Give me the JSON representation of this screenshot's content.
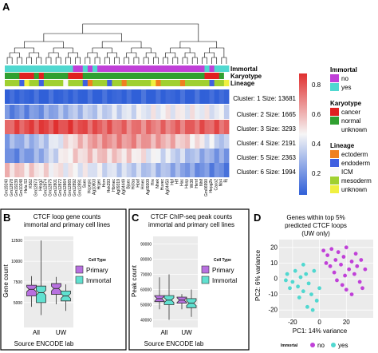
{
  "panels": {
    "A": {
      "letter": "A",
      "annotation_rows": [
        "Immortal",
        "Karyotype",
        "Lineage"
      ],
      "clusters": [
        "Cluster: 1 Size: 13681",
        "Cluster: 2 Size: 1665",
        "Cluster: 3 Size: 3293",
        "Cluster: 4 Size: 2191",
        "Cluster: 5 Size: 2363",
        "Cluster: 6 Size: 1994"
      ],
      "colorbar_ticks": [
        "0.8",
        "0.6",
        "0.4",
        "0.2"
      ],
      "legend": {
        "immortal": {
          "title": "Immortal",
          "items": [
            {
              "label": "no",
              "color": "#c040d8"
            },
            {
              "label": "yes",
              "color": "#50d8d0"
            }
          ]
        },
        "karyotype": {
          "title": "Karyotype",
          "items": [
            {
              "label": "cancer",
              "color": "#e02020"
            },
            {
              "label": "normal",
              "color": "#30a030"
            },
            {
              "label": "unknown",
              "color": "#ffffff"
            }
          ]
        },
        "lineage": {
          "title": "Lineage",
          "items": [
            {
              "label": "ectoderm",
              "color": "#f08020"
            },
            {
              "label": "endoderm",
              "color": "#4060e0"
            },
            {
              "label": "ICM",
              "color": "#f8f8f8"
            },
            {
              "label": "mesoderm",
              "color": "#a0d030"
            },
            {
              "label": "unknown",
              "color": "#f0f040"
            }
          ]
        }
      },
      "sample_labels": [
        "Gm19240",
        "Gm12878",
        "Gm19239",
        "Gm10248",
        "Hela S3",
        "K562",
        "Gm12873",
        "Hepg2",
        "Gm12874",
        "Gm12875",
        "Gm12801",
        "Gm12872",
        "Gm12864",
        "Gm12865",
        "Gm12892",
        "Gm12891",
        "Saec",
        "Hcpepic",
        "Ag10803",
        "Hrgec",
        "Hcm",
        "Hek293",
        "Hbmec",
        "Ag09319",
        "Ag04449",
        "Bjaec",
        "Hcfaa",
        "Hpaf",
        "Hmec",
        "Ag09309",
        "Hre",
        "Nhek",
        "Huvec",
        "Ag04450",
        "Hpf",
        "Hff",
        "Hac",
        "Hasp",
        "Wi38",
        "Hvmf",
        "Nhlf",
        "Gm06990",
        "Hepg2b",
        "Caco2",
        "Nb4",
        "Bj"
      ]
    },
    "B": {
      "letter": "B",
      "title_line1": "CTCF loop gene counts",
      "title_line2": "immortal and primary cell lines",
      "ylabel": "Gene count",
      "xlabel": "Source ENCODE lab",
      "yticks": [
        "12500",
        "10000",
        "7500",
        "5000"
      ],
      "categories": [
        "All",
        "UW"
      ],
      "legend_title": "Cell Type",
      "legend_items": [
        {
          "label": "Primary",
          "color": "#b870e0"
        },
        {
          "label": "Immortal",
          "color": "#60e0d0"
        }
      ]
    },
    "C": {
      "letter": "C",
      "title_line1": "CTCF ChIP-seq peak counts",
      "title_line2": "immortal and primary cell lines",
      "ylabel": "Peak count",
      "xlabel": "Source ENCODE lab",
      "yticks": [
        "90000",
        "80000",
        "70000",
        "60000",
        "50000",
        "40000"
      ],
      "categories": [
        "All",
        "UW"
      ],
      "legend_title": "Cell Type",
      "legend_items": [
        {
          "label": "Primary",
          "color": "#b870e0"
        },
        {
          "label": "Immortal",
          "color": "#60e0d0"
        }
      ]
    },
    "D": {
      "letter": "D",
      "title_line1": "Genes within top 5%",
      "title_line2": "predicted CTCF loops",
      "title_line3": "(UW only)",
      "ylabel": "PC2: 6% variance",
      "xlabel": "PC1: 14% variance",
      "xticks": [
        "-20",
        "0",
        "20"
      ],
      "yticks": [
        "20",
        "10",
        "0",
        "-10",
        "-20"
      ],
      "legend_title": "Immortal",
      "legend_items": [
        {
          "label": "no",
          "color": "#c040d8"
        },
        {
          "label": "yes",
          "color": "#50d8d0"
        }
      ]
    }
  },
  "chart_data": [
    {
      "type": "heatmap",
      "panel": "A",
      "rows": [
        "Cluster 1",
        "Cluster 2",
        "Cluster 3",
        "Cluster 4",
        "Cluster 5",
        "Cluster 6"
      ],
      "row_sizes": [
        13681,
        1665,
        3293,
        2191,
        2363,
        1994
      ],
      "color_range": [
        0.1,
        0.9
      ],
      "row_profile": [
        [
          0.1,
          0.1,
          0.1,
          0.1,
          0.1,
          0.1,
          0.1,
          0.1
        ],
        [
          0.2,
          0.25,
          0.35,
          0.4,
          0.45,
          0.5,
          0.5,
          0.45
        ],
        [
          0.8,
          0.85,
          0.85,
          0.8,
          0.75,
          0.75,
          0.8,
          0.8
        ],
        [
          0.3,
          0.35,
          0.55,
          0.7,
          0.7,
          0.65,
          0.55,
          0.35
        ],
        [
          0.2,
          0.3,
          0.55,
          0.6,
          0.55,
          0.45,
          0.35,
          0.25
        ],
        [
          0.6,
          0.55,
          0.5,
          0.45,
          0.4,
          0.35,
          0.25,
          0.2
        ]
      ]
    },
    {
      "type": "box",
      "panel": "B",
      "categories": [
        "All",
        "UW"
      ],
      "series": [
        {
          "name": "Primary",
          "values": [
            [
              4500,
              5800,
              6600,
              7100,
              8200
            ],
            [
              4800,
              6000,
              6700,
              7300,
              8100
            ]
          ]
        },
        {
          "name": "Immortal",
          "values": [
            [
              3500,
              5000,
              6200,
              7000,
              12500
            ],
            [
              4000,
              5200,
              5800,
              6400,
              7200
            ]
          ]
        }
      ],
      "ylim": [
        2000,
        13000
      ]
    },
    {
      "type": "box",
      "panel": "C",
      "categories": [
        "All",
        "UW"
      ],
      "series": [
        {
          "name": "Primary",
          "values": [
            [
              47000,
              52000,
              54000,
              56000,
              68000
            ],
            [
              47000,
              51000,
              53000,
              55000,
              57000
            ]
          ]
        },
        {
          "name": "Immortal",
          "values": [
            [
              40000,
              50000,
              53000,
              56000,
              70000
            ],
            [
              42000,
              48000,
              51000,
              54000,
              60000
            ]
          ]
        }
      ],
      "ylim": [
        35000,
        95000
      ]
    },
    {
      "type": "scatter",
      "panel": "D",
      "xlim": [
        -30,
        40
      ],
      "ylim": [
        -25,
        25
      ],
      "series": [
        {
          "name": "no",
          "points": [
            [
              3,
              18
            ],
            [
              6,
              15
            ],
            [
              9,
              19
            ],
            [
              12,
              12
            ],
            [
              14,
              17
            ],
            [
              16,
              9
            ],
            [
              18,
              14
            ],
            [
              20,
              20
            ],
            [
              22,
              6
            ],
            [
              24,
              11
            ],
            [
              26,
              3
            ],
            [
              28,
              8
            ],
            [
              30,
              -2
            ],
            [
              11,
              4
            ],
            [
              17,
              -4
            ],
            [
              20,
              -7
            ],
            [
              24,
              -10
            ],
            [
              31,
              12
            ],
            [
              34,
              6
            ],
            [
              8,
              8
            ],
            [
              13,
              -1
            ],
            [
              27,
              16
            ],
            [
              32,
              -6
            ],
            [
              5,
              10
            ],
            [
              19,
              2
            ]
          ]
        },
        {
          "name": "yes",
          "points": [
            [
              -24,
              3
            ],
            [
              -20,
              -2
            ],
            [
              -18,
              5
            ],
            [
              -16,
              -5
            ],
            [
              -14,
              1
            ],
            [
              -12,
              -8
            ],
            [
              -10,
              3
            ],
            [
              -8,
              -3
            ],
            [
              -22,
              -6
            ],
            [
              -6,
              -10
            ],
            [
              -4,
              5
            ],
            [
              -2,
              -14
            ],
            [
              0,
              -6
            ],
            [
              -15,
              -12
            ],
            [
              -9,
              -18
            ],
            [
              -25,
              -1
            ],
            [
              -5,
              -20
            ],
            [
              -12,
              9
            ]
          ]
        }
      ]
    }
  ]
}
